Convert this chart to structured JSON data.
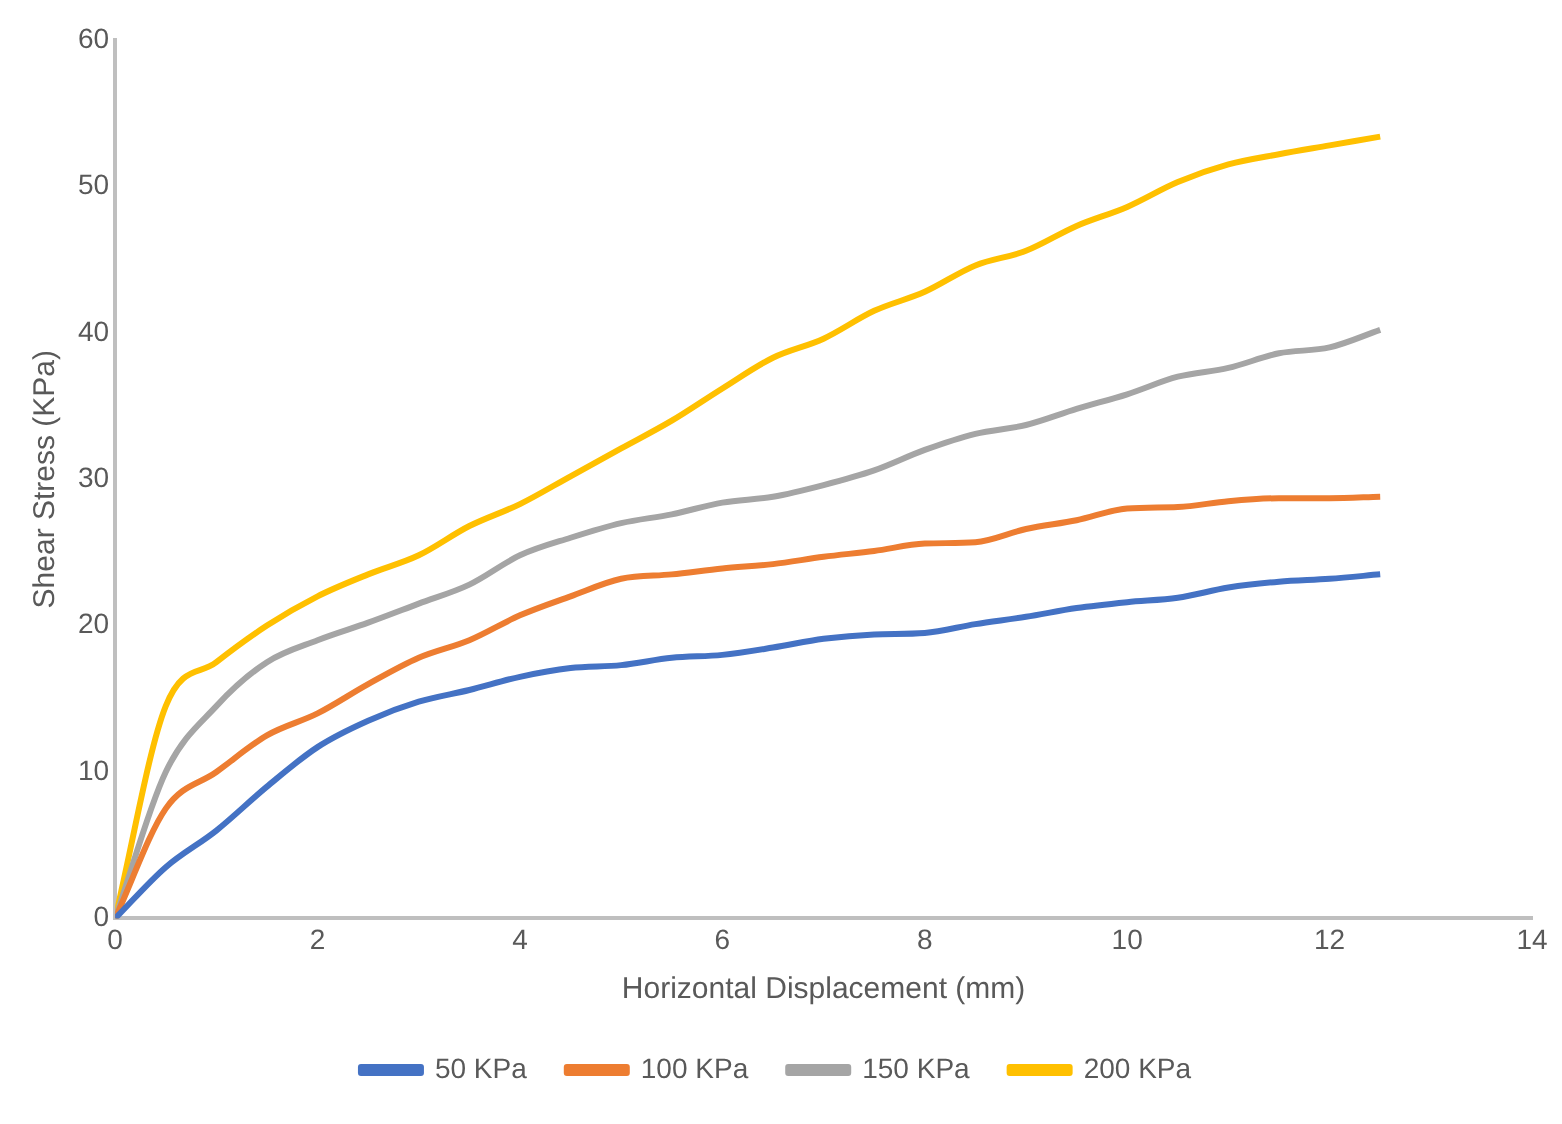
{
  "chart_data": {
    "type": "line",
    "xlabel": "Horizontal Displacement (mm)",
    "ylabel": "Shear Stress (KPa)",
    "x": [
      0,
      0.5,
      1,
      1.5,
      2,
      2.5,
      3,
      3.5,
      4,
      4.5,
      5,
      5.5,
      6,
      6.5,
      7,
      7.5,
      8,
      8.5,
      9,
      9.5,
      10,
      10.5,
      11,
      11.5,
      12,
      12.5
    ],
    "series": [
      {
        "name": "50 KPa",
        "color": "#4472c4",
        "values": [
          0,
          3.5,
          6,
          9,
          11.7,
          13.5,
          14.8,
          15.6,
          16.5,
          17.1,
          17.3,
          17.8,
          18,
          18.5,
          19.1,
          19.4,
          19.5,
          20.1,
          20.6,
          21.2,
          21.6,
          21.9,
          22.6,
          23,
          23.2,
          23.5
        ]
      },
      {
        "name": "100 KPa",
        "color": "#ed7d31",
        "values": [
          0,
          7.5,
          10,
          12.5,
          14,
          16,
          17.8,
          19,
          20.7,
          22,
          23.2,
          23.5,
          23.9,
          24.2,
          24.7,
          25.1,
          25.6,
          25.7,
          26.6,
          27.2,
          28,
          28.1,
          28.5,
          28.7,
          28.7,
          28.8
        ]
      },
      {
        "name": "150 KPa",
        "color": "#a5a5a5",
        "values": [
          0,
          10,
          14.5,
          17.5,
          19,
          20.2,
          21.5,
          22.8,
          24.8,
          26,
          27,
          27.6,
          28.4,
          28.8,
          29.6,
          30.6,
          32,
          33.1,
          33.7,
          34.8,
          35.8,
          37,
          37.6,
          38.6,
          39,
          40.2
        ]
      },
      {
        "name": "200 KPa",
        "color": "#ffc000",
        "values": [
          0,
          14.5,
          17.5,
          20,
          22,
          23.5,
          24.8,
          26.8,
          28.3,
          30.2,
          32.1,
          34,
          36.2,
          38.3,
          39.6,
          41.5,
          42.8,
          44.6,
          45.6,
          47.3,
          48.6,
          50.3,
          51.5,
          52.2,
          52.8,
          53.4
        ]
      }
    ],
    "xlim": [
      0,
      14
    ],
    "xticks": [
      0,
      2,
      4,
      6,
      8,
      10,
      12,
      14
    ],
    "ylim": [
      0,
      60
    ],
    "yticks": [
      0,
      10,
      20,
      30,
      40,
      50,
      60
    ],
    "grid": false,
    "legend": "bottom",
    "marker": "none",
    "line_style": "solid"
  }
}
